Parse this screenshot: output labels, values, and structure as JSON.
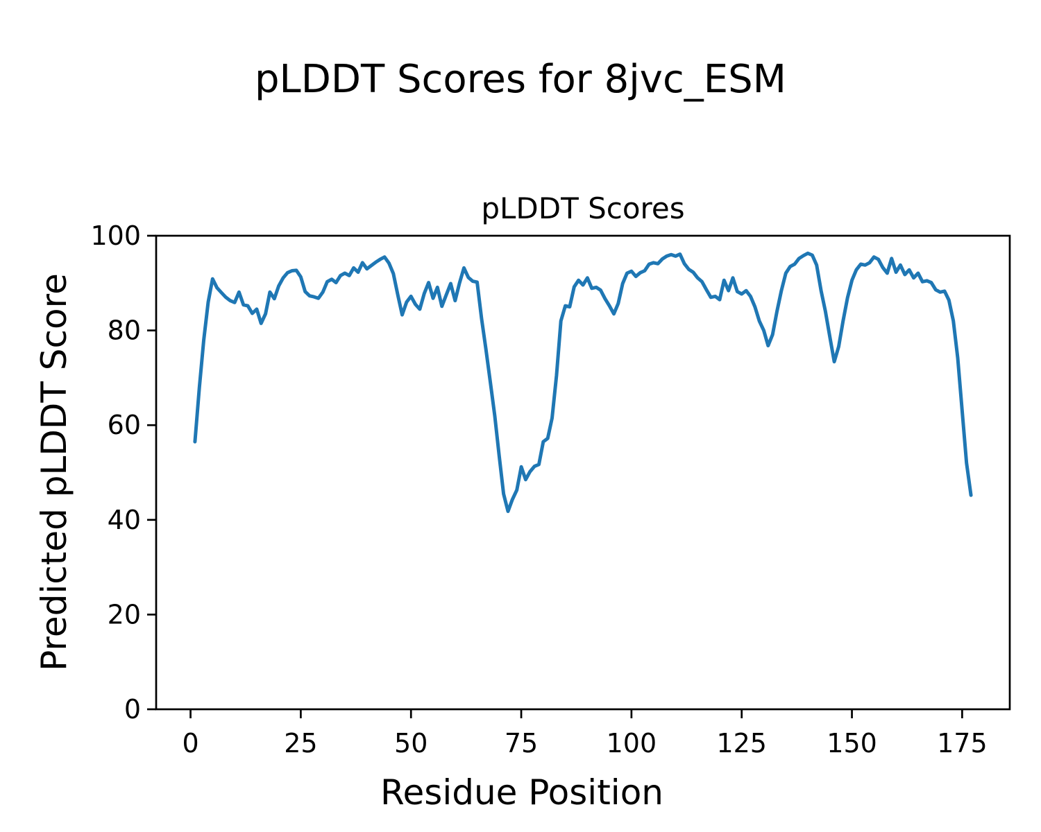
{
  "figure": {
    "suptitle": "pLDDT Scores for 8jvc_ESM",
    "background": "#ffffff"
  },
  "chart_data": {
    "type": "line",
    "title": "pLDDT Scores",
    "xlabel": "Residue Position",
    "ylabel": "Predicted pLDDT Score",
    "grid": false,
    "legend": "none",
    "xlim": [
      -7.8,
      185.8
    ],
    "ylim": [
      0,
      100
    ],
    "xticks": [
      0,
      25,
      50,
      75,
      100,
      125,
      150,
      175
    ],
    "yticks": [
      0,
      20,
      40,
      60,
      80,
      100
    ],
    "axis_color": "#000000",
    "series": [
      {
        "name": "pLDDT",
        "color": "#1f77b4",
        "line_width": 5,
        "x_start": 1,
        "x_step": 1,
        "values": [
          56.5,
          68.0,
          78.0,
          86.0,
          90.9,
          89.0,
          88.0,
          87.0,
          86.3,
          85.9,
          88.1,
          85.4,
          85.2,
          83.6,
          84.5,
          81.5,
          83.5,
          88.1,
          86.7,
          89.4,
          91.1,
          92.2,
          92.6,
          92.7,
          91.3,
          88.2,
          87.3,
          87.1,
          86.8,
          88.1,
          90.3,
          90.8,
          90.1,
          91.6,
          92.1,
          91.6,
          93.2,
          92.3,
          94.3,
          93.0,
          93.7,
          94.4,
          95.0,
          95.5,
          94.2,
          92.0,
          87.5,
          83.3,
          86.0,
          87.2,
          85.5,
          84.5,
          87.8,
          90.1,
          86.8,
          89.1,
          85.1,
          87.5,
          89.9,
          86.3,
          90.0,
          93.2,
          91.2,
          90.4,
          90.2,
          82.5,
          76.0,
          69.0,
          62.0,
          53.5,
          45.5,
          41.8,
          44.3,
          46.3,
          51.2,
          48.5,
          50.2,
          51.3,
          51.7,
          56.5,
          57.2,
          61.5,
          70.5,
          82.0,
          85.2,
          85.0,
          89.2,
          90.6,
          89.6,
          91.1,
          88.9,
          89.1,
          88.5,
          86.7,
          85.2,
          83.5,
          85.7,
          89.9,
          92.1,
          92.5,
          91.4,
          92.2,
          92.6,
          94.0,
          94.3,
          94.1,
          95.1,
          95.7,
          96.0,
          95.7,
          96.1,
          94.1,
          92.9,
          92.3,
          91.1,
          90.3,
          88.6,
          87.0,
          87.2,
          86.5,
          90.6,
          88.4,
          91.1,
          88.2,
          87.7,
          88.4,
          87.2,
          85.0,
          82.0,
          80.0,
          76.8,
          79.1,
          84.0,
          88.4,
          92.1,
          93.5,
          94.0,
          95.2,
          95.8,
          96.3,
          95.9,
          93.8,
          88.4,
          84.0,
          78.6,
          73.4,
          76.6,
          82.0,
          86.9,
          90.6,
          92.8,
          94.0,
          93.8,
          94.3,
          95.5,
          95.0,
          93.3,
          92.1,
          95.2,
          92.3,
          93.8,
          91.8,
          92.8,
          91.1,
          92.1,
          90.3,
          90.5,
          90.1,
          88.6,
          88.1,
          88.3,
          86.4,
          82.0,
          74.2,
          63.0,
          52.0,
          45.2
        ]
      }
    ]
  }
}
